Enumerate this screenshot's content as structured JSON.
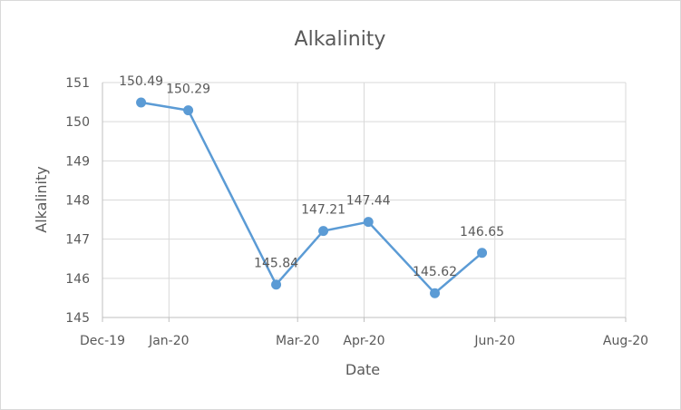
{
  "chart_data": {
    "type": "line",
    "title": "Alkalinity",
    "xlabel": "Date",
    "ylabel": "Alkalinity",
    "ylim": [
      145,
      151
    ],
    "y_ticks": [
      "145",
      "146",
      "147",
      "148",
      "149",
      "150",
      "151"
    ],
    "xlim": [
      "2019-12-01",
      "2020-08-01"
    ],
    "x_ticks": [
      {
        "date": "2019-12-01",
        "label": "Dec-19"
      },
      {
        "date": "2020-01-01",
        "label": "Jan-20"
      },
      {
        "date": "2020-03-01",
        "label": "Mar-20"
      },
      {
        "date": "2020-04-01",
        "label": "Apr-20"
      },
      {
        "date": "2020-06-01",
        "label": "Jun-20"
      },
      {
        "date": "2020-08-01",
        "label": "Aug-20"
      }
    ],
    "grid": true,
    "legend": "none",
    "color": "#5b9bd5",
    "series": [
      {
        "points": [
          {
            "x": "2019-12-19",
            "y": 150.49,
            "label": "150.49"
          },
          {
            "x": "2020-01-10",
            "y": 150.29,
            "label": "150.29"
          },
          {
            "x": "2020-02-20",
            "y": 145.84,
            "label": "145.84"
          },
          {
            "x": "2020-03-13",
            "y": 147.21,
            "label": "147.21"
          },
          {
            "x": "2020-04-03",
            "y": 147.44,
            "label": "147.44"
          },
          {
            "x": "2020-05-04",
            "y": 145.62,
            "label": "145.62"
          },
          {
            "x": "2020-05-26",
            "y": 146.65,
            "label": "146.65"
          }
        ]
      }
    ]
  }
}
